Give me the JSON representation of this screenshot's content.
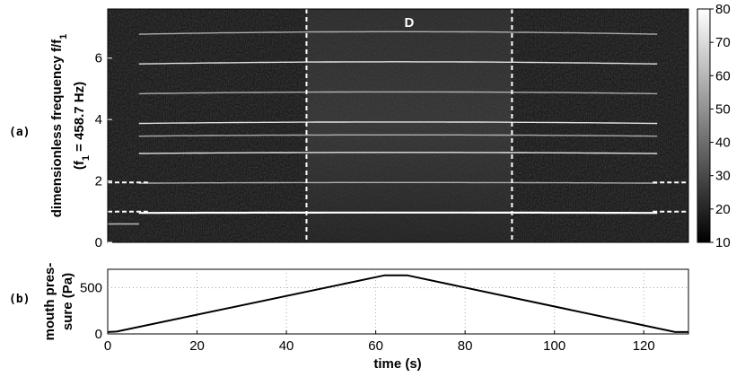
{
  "chart_data": [
    {
      "panel": "(a)",
      "type": "heatmap",
      "ylabel_line1": "dimensionless frequency f/f",
      "ylabel_line1_sub": "1",
      "ylabel_line2_pre": "(f",
      "ylabel_line2_sub": "1",
      "ylabel_line2_post": " = 458.7 Hz)",
      "xlim": [
        0,
        130
      ],
      "ylim": [
        0,
        7.6
      ],
      "yticks": [
        "0",
        "2",
        "4",
        "6"
      ],
      "ytick_values": [
        0,
        2,
        4,
        6
      ],
      "colorbar": {
        "ticks": [
          "10",
          "20",
          "30",
          "40",
          "50",
          "60",
          "70",
          "80"
        ],
        "values": [
          10,
          20,
          30,
          40,
          50,
          60,
          70,
          80
        ],
        "range": [
          10,
          80
        ]
      },
      "region_label": "D",
      "region_start": 44.5,
      "region_end": 90.5,
      "harmonics_f": [
        0.97,
        1.95,
        2.93,
        3.5,
        3.92,
        4.9,
        5.88,
        6.86
      ],
      "onset_time": 7,
      "offset_time": 124,
      "dashed_h_levels": [
        1.0,
        1.95
      ]
    },
    {
      "panel": "(b)",
      "type": "line",
      "ylabel_line1": "mouth pres-",
      "ylabel_line2": "sure (Pa)",
      "xlabel": "time (s)",
      "xlim": [
        0,
        130
      ],
      "ylim": [
        0,
        700
      ],
      "xticks": [
        "0",
        "20",
        "40",
        "60",
        "80",
        "100",
        "120"
      ],
      "xtick_values": [
        0,
        20,
        40,
        60,
        80,
        100,
        120
      ],
      "yticks": [
        "0",
        "500"
      ],
      "ytick_values": [
        0,
        500
      ],
      "grid": true,
      "x": [
        0,
        2,
        62,
        67,
        127,
        130
      ],
      "y": [
        20,
        25,
        635,
        635,
        20,
        20
      ]
    }
  ]
}
